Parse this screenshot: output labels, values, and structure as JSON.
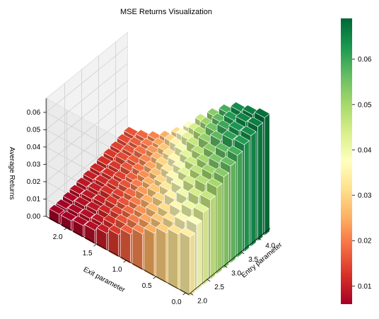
{
  "chart_data": {
    "type": "bar3d",
    "title": "MSE Returns Visualization",
    "xlabel": "Entry parameter",
    "ylabel": "Exit parameter",
    "zlabel": "Average Returns",
    "x_ticks": [
      "2.0",
      "2.5",
      "3.0",
      "3.5",
      "4.0"
    ],
    "y_ticks": [
      "0.0",
      "0.5",
      "1.0",
      "1.5",
      "2.0"
    ],
    "z_ticks": [
      "0.00",
      "0.01",
      "0.02",
      "0.03",
      "0.04",
      "0.05",
      "0.06"
    ],
    "colorbar_ticks": [
      "0.01",
      "0.02",
      "0.03",
      "0.04",
      "0.05",
      "0.06"
    ],
    "colorbar_range": [
      0.006,
      0.069
    ],
    "zlim": [
      0,
      0.068
    ],
    "colormap": "RdYlGn",
    "grid": true,
    "entry_values": [
      2.0,
      2.2,
      2.4,
      2.6,
      2.8,
      3.0,
      3.2,
      3.4,
      3.6,
      3.8,
      4.0,
      4.2
    ],
    "exit_values": [
      0.0,
      0.2,
      0.4,
      0.6,
      0.8,
      1.0,
      1.2,
      1.4,
      1.6,
      1.8,
      2.0,
      2.2
    ],
    "returns": [
      [
        0.034,
        0.032,
        0.029,
        0.025,
        0.021,
        0.017,
        0.013,
        0.01,
        0.008,
        0.007,
        0.006,
        0.006
      ],
      [
        0.038,
        0.036,
        0.032,
        0.028,
        0.024,
        0.02,
        0.016,
        0.012,
        0.009,
        0.008,
        0.007,
        0.006
      ],
      [
        0.042,
        0.04,
        0.036,
        0.031,
        0.027,
        0.022,
        0.018,
        0.014,
        0.011,
        0.009,
        0.008,
        0.007
      ],
      [
        0.046,
        0.044,
        0.04,
        0.035,
        0.03,
        0.025,
        0.02,
        0.016,
        0.013,
        0.01,
        0.009,
        0.008
      ],
      [
        0.05,
        0.048,
        0.044,
        0.039,
        0.033,
        0.028,
        0.023,
        0.018,
        0.014,
        0.012,
        0.01,
        0.009
      ],
      [
        0.053,
        0.051,
        0.047,
        0.042,
        0.036,
        0.03,
        0.025,
        0.02,
        0.016,
        0.013,
        0.011,
        0.01
      ],
      [
        0.056,
        0.054,
        0.05,
        0.045,
        0.039,
        0.033,
        0.027,
        0.022,
        0.017,
        0.014,
        0.012,
        0.011
      ],
      [
        0.059,
        0.057,
        0.053,
        0.048,
        0.042,
        0.036,
        0.03,
        0.024,
        0.019,
        0.016,
        0.013,
        0.012
      ],
      [
        0.062,
        0.061,
        0.057,
        0.052,
        0.046,
        0.039,
        0.032,
        0.026,
        0.021,
        0.017,
        0.015,
        0.013
      ],
      [
        0.064,
        0.063,
        0.06,
        0.055,
        0.049,
        0.042,
        0.035,
        0.028,
        0.023,
        0.019,
        0.016,
        0.014
      ],
      [
        0.066,
        0.065,
        0.062,
        0.057,
        0.051,
        0.044,
        0.037,
        0.03,
        0.024,
        0.02,
        0.017,
        0.015
      ],
      [
        0.068,
        0.066,
        0.064,
        0.059,
        0.053,
        0.046,
        0.038,
        0.031,
        0.025,
        0.021,
        0.018,
        0.016
      ]
    ]
  }
}
